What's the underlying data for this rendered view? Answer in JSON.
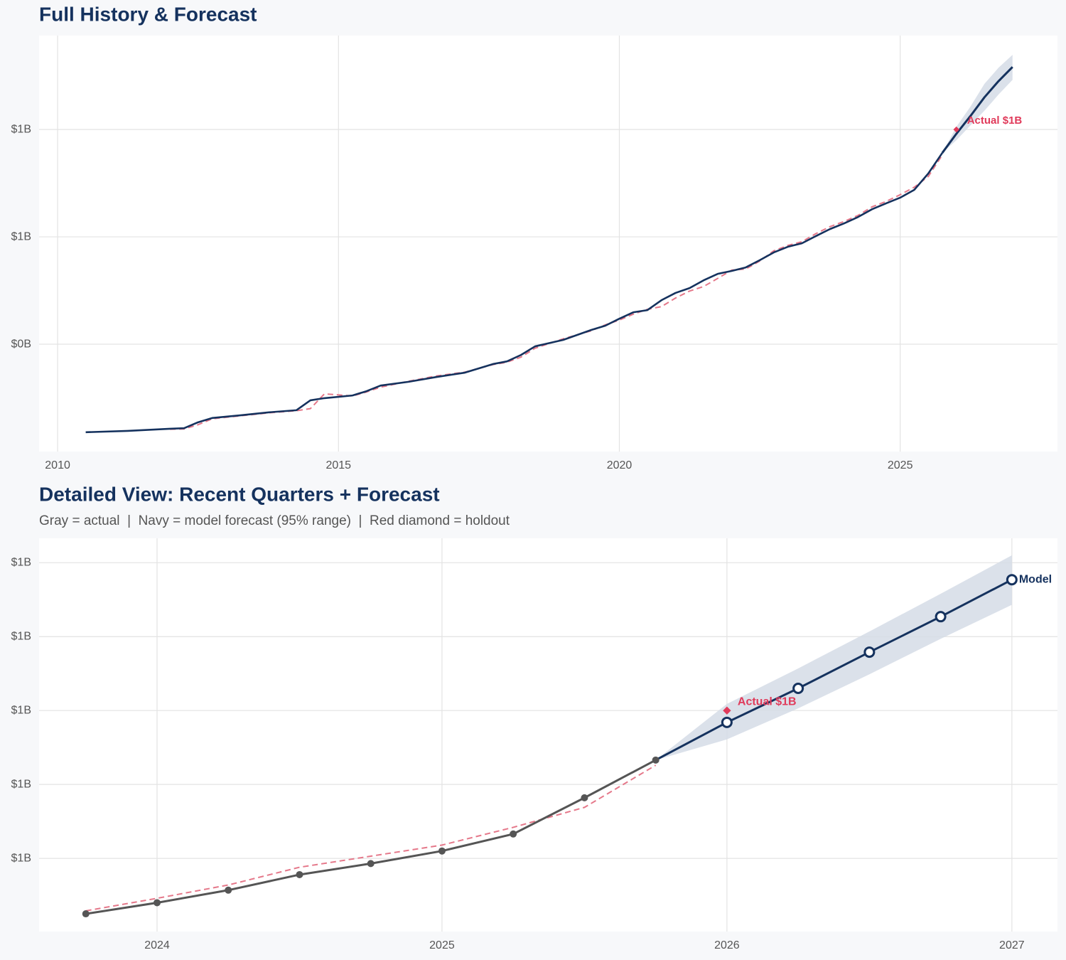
{
  "chart_data": [
    {
      "type": "line",
      "title": "Full History & Forecast",
      "x": [
        2010.5,
        2011.25,
        2012,
        2012.25,
        2012.5,
        2012.75,
        2013.25,
        2013.75,
        2014.25,
        2014.5,
        2014.75,
        2015.25,
        2015.5,
        2015.75,
        2016.25,
        2016.75,
        2017.25,
        2017.75,
        2018,
        2018.25,
        2018.5,
        2019,
        2019.5,
        2019.75,
        2020,
        2020.25,
        2020.5,
        2020.75,
        2021,
        2021.25,
        2021.5,
        2021.75,
        2022,
        2022.25,
        2022.5,
        2022.75,
        2023,
        2023.25,
        2023.5,
        2023.75,
        2024,
        2024.25,
        2024.5,
        2024.75,
        2025,
        2025.25,
        2025.5,
        2025.75,
        2026,
        2026.25,
        2026.5,
        2026.75,
        2027
      ],
      "series": [
        {
          "color": "#e5788a",
          "dash": true,
          "width": 2,
          "values": [
            null,
            null,
            0.083,
            0.084,
            0.1,
            0.122,
            0.133,
            0.144,
            0.152,
            0.16,
            0.215,
            0.207,
            0.222,
            0.24,
            0.262,
            0.282,
            0.296,
            0.324,
            0.333,
            0.352,
            0.385,
            0.42,
            0.45,
            0.472,
            0.49,
            0.512,
            0.53,
            0.54,
            0.572,
            0.598,
            0.615,
            0.645,
            0.676,
            0.68,
            0.71,
            0.748,
            0.768,
            0.782,
            0.812,
            0.838,
            0.857,
            0.88,
            0.912,
            0.932,
            0.957,
            0.985,
            1.025,
            1.105,
            null,
            null,
            null,
            null,
            null
          ]
        },
        {
          "color": "#15325e",
          "dash": false,
          "width": 2.6,
          "values": [
            0.072,
            0.077,
            0.085,
            0.087,
            0.109,
            0.125,
            0.135,
            0.146,
            0.154,
            0.191,
            0.199,
            0.209,
            0.225,
            0.246,
            0.26,
            0.278,
            0.294,
            0.326,
            0.336,
            0.36,
            0.392,
            0.416,
            0.453,
            0.469,
            0.495,
            0.519,
            0.527,
            0.564,
            0.591,
            0.609,
            0.638,
            0.662,
            0.673,
            0.686,
            0.713,
            0.742,
            0.763,
            0.776,
            0.803,
            0.829,
            0.85,
            0.874,
            0.903,
            0.925,
            0.946,
            0.975,
            1.036,
            1.113,
            null,
            null,
            null,
            null,
            null
          ]
        },
        {
          "color": "#15325e",
          "dash": false,
          "width": 3,
          "band_color": "#d5dce6",
          "values": [
            null,
            null,
            null,
            null,
            null,
            null,
            null,
            null,
            null,
            null,
            null,
            null,
            null,
            null,
            null,
            null,
            null,
            null,
            null,
            null,
            null,
            null,
            null,
            null,
            null,
            null,
            null,
            null,
            null,
            null,
            null,
            null,
            null,
            null,
            null,
            null,
            null,
            null,
            null,
            null,
            null,
            null,
            null,
            null,
            null,
            null,
            null,
            1.113,
            1.184,
            1.25,
            1.32,
            1.38,
            1.433
          ],
          "lower": [
            null,
            null,
            null,
            null,
            null,
            null,
            null,
            null,
            null,
            null,
            null,
            null,
            null,
            null,
            null,
            null,
            null,
            null,
            null,
            null,
            null,
            null,
            null,
            null,
            null,
            null,
            null,
            null,
            null,
            null,
            null,
            null,
            null,
            null,
            null,
            null,
            null,
            null,
            null,
            null,
            null,
            null,
            null,
            null,
            null,
            null,
            null,
            1.113,
            1.16,
            1.215,
            1.27,
            1.33,
            1.385
          ],
          "upper": [
            null,
            null,
            null,
            null,
            null,
            null,
            null,
            null,
            null,
            null,
            null,
            null,
            null,
            null,
            null,
            null,
            null,
            null,
            null,
            null,
            null,
            null,
            null,
            null,
            null,
            null,
            null,
            null,
            null,
            null,
            null,
            null,
            null,
            null,
            null,
            null,
            null,
            null,
            null,
            null,
            null,
            null,
            null,
            null,
            null,
            null,
            null,
            1.113,
            1.21,
            1.285,
            1.37,
            1.43,
            1.478
          ]
        }
      ],
      "holdout": {
        "x": 2026,
        "value": 1.2,
        "label": "Actual $1B",
        "color": "#e03a5a"
      },
      "xlim": [
        2009.67,
        2027.8
      ],
      "xticks": [
        2010,
        2015,
        2020,
        2025
      ],
      "ylim": [
        0,
        1.55
      ],
      "yticks": [
        {
          "value": 0.4,
          "label": "$0B"
        },
        {
          "value": 0.8,
          "label": "$1B"
        },
        {
          "value": 1.2,
          "label": "$1B"
        }
      ],
      "grid": true
    },
    {
      "type": "line",
      "title": "Detailed View: Recent Quarters + Forecast",
      "subtitle": "Gray = actual  |  Navy = model forecast (95% range)  |  Red diamond = holdout",
      "x": [
        2023.75,
        2024,
        2024.25,
        2024.5,
        2024.75,
        2025,
        2025.25,
        2025.5,
        2025.75,
        2026,
        2026.25,
        2026.5,
        2026.75,
        2027
      ],
      "series": [
        {
          "color": "#e5788a",
          "dash": true,
          "width": 2,
          "values": [
            0.929,
            0.946,
            0.964,
            0.988,
            1.003,
            1.018,
            1.042,
            1.069,
            1.126,
            null,
            null,
            null,
            null,
            null
          ]
        },
        {
          "color": "#555555",
          "dash": false,
          "width": 3,
          "marker": "dot",
          "values": [
            0.925,
            0.94,
            0.957,
            0.978,
            0.993,
            1.01,
            1.033,
            1.082,
            1.133,
            null,
            null,
            null,
            null,
            null
          ]
        },
        {
          "color": "#15325e",
          "dash": false,
          "width": 3,
          "marker": "open",
          "band_color": "#d5dce6",
          "end_label": "Model",
          "values": [
            null,
            null,
            null,
            null,
            null,
            null,
            null,
            null,
            1.133,
            1.184,
            1.23,
            1.279,
            1.327,
            1.377
          ],
          "lower": [
            null,
            null,
            null,
            null,
            null,
            null,
            null,
            null,
            1.133,
            1.161,
            1.203,
            1.249,
            1.297,
            1.343
          ],
          "upper": [
            null,
            null,
            null,
            null,
            null,
            null,
            null,
            null,
            1.133,
            1.209,
            1.257,
            1.307,
            1.358,
            1.41
          ]
        }
      ],
      "holdout": {
        "x": 2026,
        "value": 1.2,
        "label": "Actual $1B",
        "color": "#e03a5a"
      },
      "xlim": [
        2023.586,
        2027.16
      ],
      "xticks": [
        2024,
        2025,
        2026,
        2027
      ],
      "ylim": [
        0.901,
        1.433
      ],
      "yticks": [
        {
          "value": 1.0,
          "label": "$1B"
        },
        {
          "value": 1.1,
          "label": "$1B"
        },
        {
          "value": 1.2,
          "label": "$1B"
        },
        {
          "value": 1.3,
          "label": "$1B"
        },
        {
          "value": 1.4,
          "label": "$1B"
        }
      ],
      "grid": true
    }
  ]
}
